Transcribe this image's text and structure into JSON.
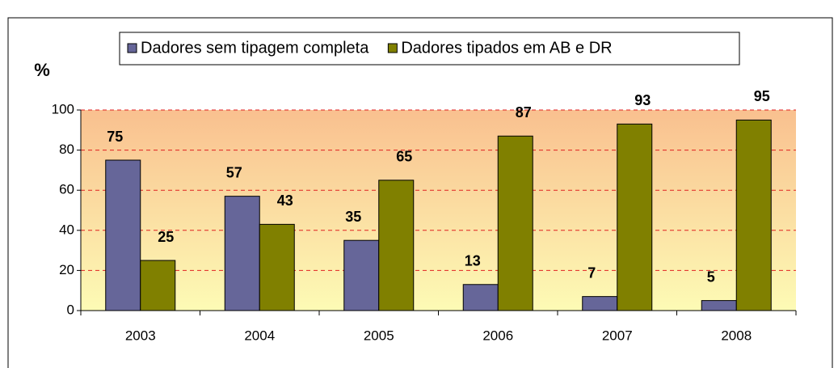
{
  "chart_data": {
    "type": "bar",
    "y_label": "%",
    "categories": [
      "2003",
      "2004",
      "2005",
      "2006",
      "2007",
      "2008"
    ],
    "series": [
      {
        "name": "Dadores sem tipagem completa",
        "color": "#666699",
        "values": [
          75,
          57,
          35,
          13,
          7,
          5
        ]
      },
      {
        "name": "Dadores tipados em AB e DR",
        "color": "#808000",
        "values": [
          25,
          43,
          65,
          87,
          93,
          95
        ]
      }
    ],
    "ylim": [
      0,
      100
    ],
    "yticks": [
      0,
      20,
      40,
      60,
      80,
      100
    ],
    "grid": true,
    "legend": "top"
  }
}
